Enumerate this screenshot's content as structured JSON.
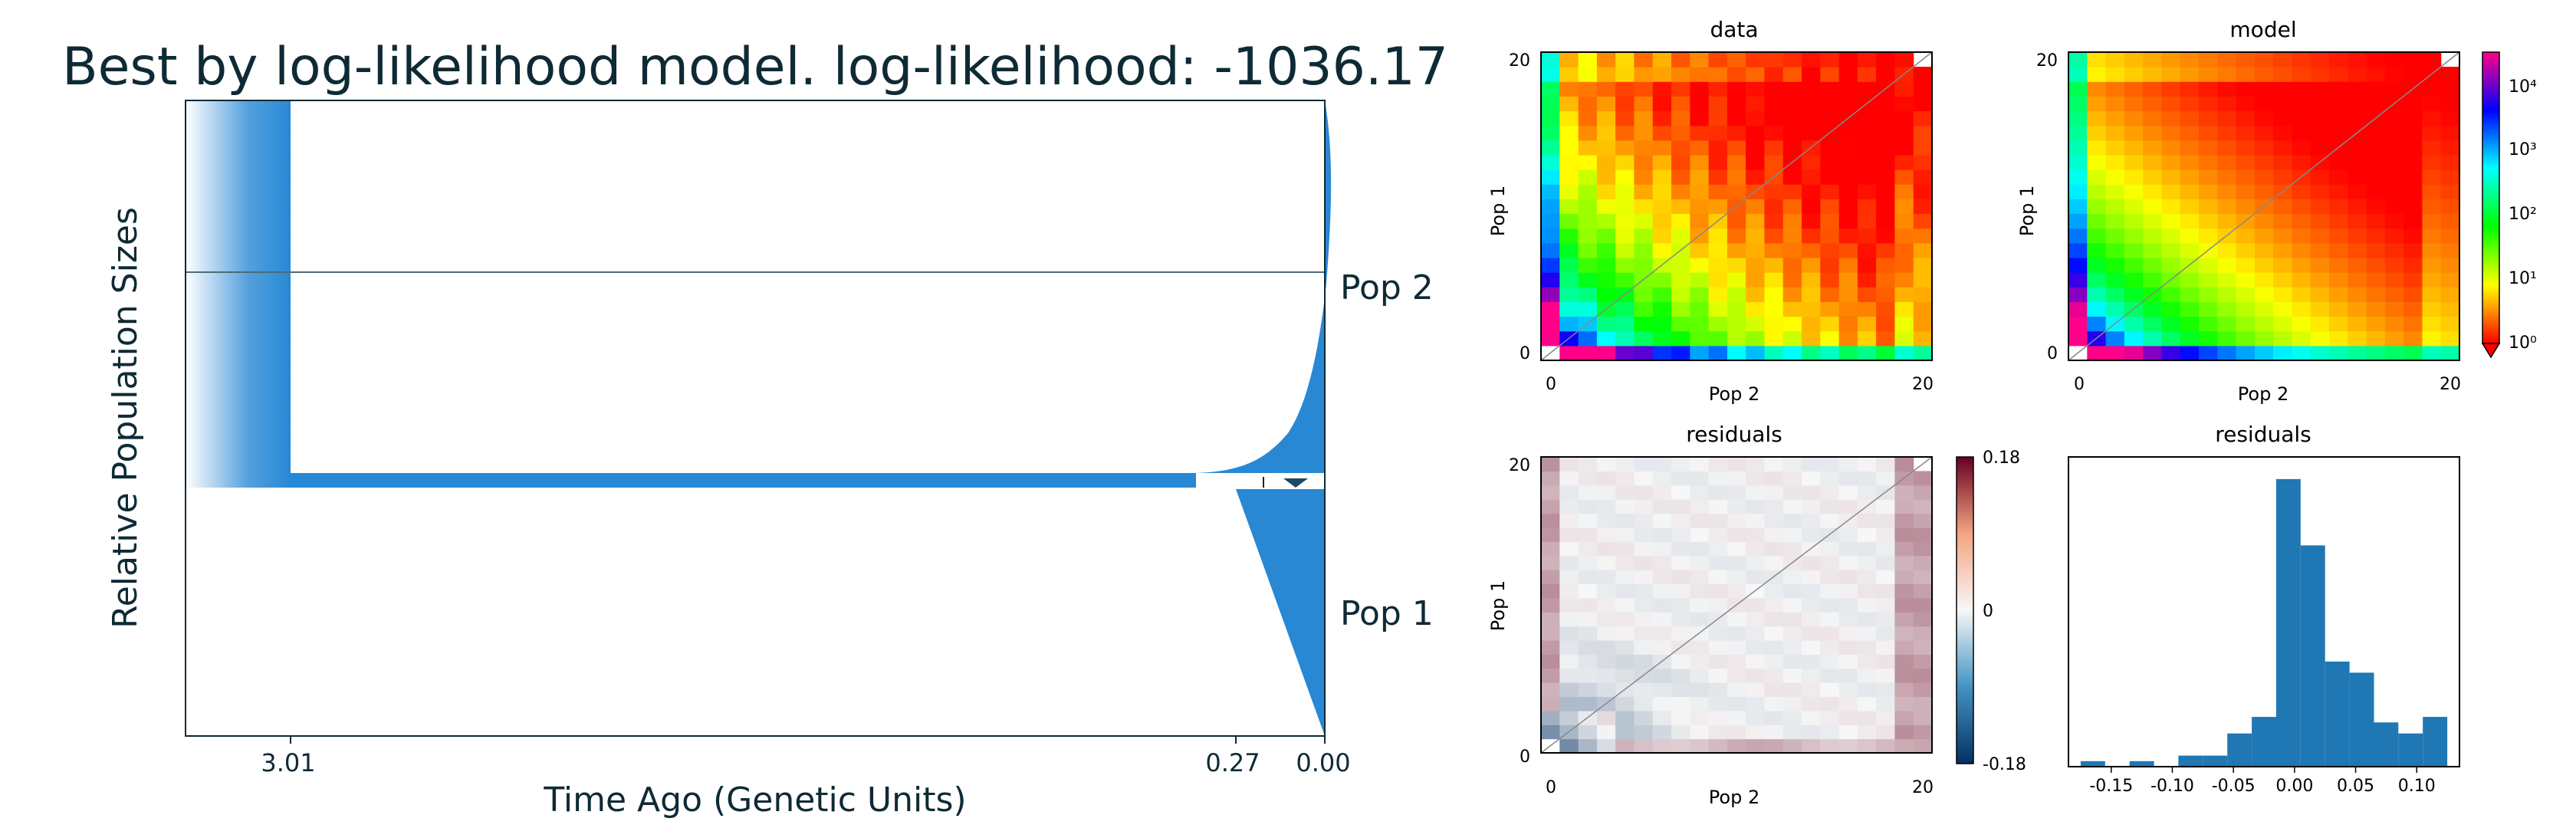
{
  "main_title": "Best by log-likelihood model. log-likelihood: -1036.17",
  "demography": {
    "ylabel": "Relative Population Sizes",
    "xlabel": "Time Ago (Genetic Units)",
    "xticks": [
      "3.01",
      "0.27",
      "0.00"
    ],
    "pop_labels": [
      "Pop 2",
      "Pop 1"
    ],
    "color": "#2888D4"
  },
  "sfs_panels": {
    "data_title": "data",
    "model_title": "model",
    "residuals_title": "residuals",
    "hist_title": "residuals",
    "xlabel": "Pop 2",
    "ylabel": "Pop 1",
    "axis_ticks": [
      "0",
      "20"
    ],
    "log_colorbar_ticks": [
      "10⁴",
      "10³",
      "10²",
      "10¹",
      "10⁰"
    ],
    "residual_colorbar_ticks": [
      "0.18",
      "0",
      "-0.18"
    ]
  },
  "chart_data": [
    {
      "type": "area",
      "title": "Best by log-likelihood model. log-likelihood: -1036.17",
      "xlabel": "Time Ago (Genetic Units)",
      "ylabel": "Relative Population Sizes",
      "x_tick_labels": [
        "3.01",
        "0.27",
        "0.00"
      ],
      "events": [
        {
          "time": 3.01,
          "event": "split into Pop 1 and Pop 2"
        },
        {
          "time": 0.27,
          "event": "size change"
        }
      ],
      "series": [
        {
          "name": "Pop 2"
        },
        {
          "name": "Pop 1"
        }
      ]
    },
    {
      "type": "heatmap",
      "title": "data",
      "xlabel": "Pop 2",
      "ylabel": "Pop 1",
      "xlim": [
        0,
        20
      ],
      "ylim": [
        0,
        20
      ],
      "color_scale": "log",
      "colorbar_range": [
        1,
        30000
      ]
    },
    {
      "type": "heatmap",
      "title": "model",
      "xlabel": "Pop 2",
      "ylabel": "Pop 1",
      "xlim": [
        0,
        20
      ],
      "ylim": [
        0,
        20
      ],
      "color_scale": "log",
      "colorbar_range": [
        1,
        30000
      ]
    },
    {
      "type": "heatmap",
      "title": "residuals",
      "xlabel": "Pop 2",
      "ylabel": "Pop 1",
      "xlim": [
        0,
        20
      ],
      "ylim": [
        0,
        20
      ],
      "colorbar_range": [
        -0.18,
        0.18
      ]
    },
    {
      "type": "bar",
      "title": "residuals",
      "x_tick_labels": [
        "-0.15",
        "-0.10",
        "-0.05",
        "0.00",
        "0.05",
        "0.10"
      ],
      "bin_edges": [
        -0.175,
        -0.155,
        -0.135,
        -0.115,
        -0.095,
        -0.075,
        -0.055,
        -0.035,
        -0.015,
        0.005,
        0.025,
        0.045,
        0.065,
        0.085,
        0.105,
        0.125
      ],
      "counts": [
        1,
        0,
        1,
        0,
        2,
        2,
        6,
        9,
        52,
        40,
        19,
        17,
        8,
        6,
        9,
        2
      ],
      "xlim": [
        -0.185,
        0.135
      ]
    }
  ]
}
